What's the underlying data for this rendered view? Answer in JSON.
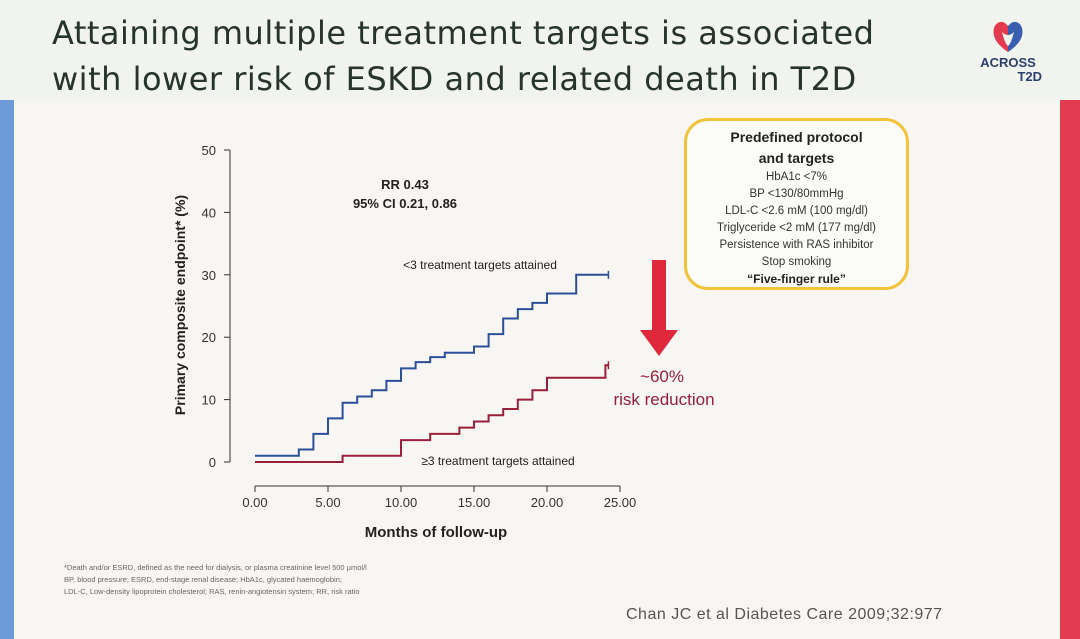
{
  "header": {
    "title_line1": "Attaining multiple treatment targets is associated",
    "title_line2": "with lower risk of ESKD and related death in T2D",
    "logo_line1": "ACROSS",
    "logo_line2": "T2D",
    "logo_icon": "across-t2d-logo-icon",
    "colors": {
      "logo_red": "#e23a4e",
      "logo_blue": "#3b5fb0"
    }
  },
  "chart_data": {
    "type": "line",
    "xlabel": "Months of follow-up",
    "ylabel": "Primary composite endpoint* (%)",
    "xlim": [
      0,
      25
    ],
    "ylim": [
      0,
      50
    ],
    "x_ticks": [
      "0.00",
      "5.00",
      "10.00",
      "15.00",
      "20.00",
      "25.00"
    ],
    "y_ticks": [
      "0",
      "10",
      "20",
      "30",
      "40",
      "50"
    ],
    "grid": false,
    "annotations": {
      "rr": "RR 0.43",
      "ci": "95% CI 0.21, 0.86",
      "reduction_pct": "~60%",
      "reduction_label": "risk reduction"
    },
    "series": [
      {
        "name": "<3 treatment targets attained",
        "color": "#2c4f9a",
        "step_x": [
          0,
          3,
          4,
          5,
          6,
          7,
          8,
          9,
          10,
          11,
          12,
          13,
          15,
          16,
          17,
          18,
          19,
          20,
          22,
          24
        ],
        "step_y": [
          1,
          2,
          4.5,
          7,
          9.5,
          10.5,
          11.5,
          13,
          15,
          16,
          16.8,
          17.5,
          18.5,
          20.5,
          23,
          24.5,
          25.5,
          27,
          30,
          30
        ]
      },
      {
        "name": "≥3 treatment targets attained",
        "color": "#9a1f3a",
        "step_x": [
          0,
          6,
          10,
          12,
          14,
          15,
          16,
          17,
          18,
          19,
          20,
          24
        ],
        "step_y": [
          0,
          1,
          3.5,
          4.5,
          5.5,
          6.5,
          7.5,
          8.5,
          10,
          11.5,
          13.5,
          15.5
        ]
      }
    ]
  },
  "protocol": {
    "heading1": "Predefined protocol",
    "heading2": "and targets",
    "items": [
      "HbA1c <7%",
      "BP <130/80mmHg",
      "LDL-C <2.6 mM (100 mg/dl)",
      "Triglyceride <2 mM (177 mg/dl)",
      "Persistence with RAS inhibitor",
      "Stop smoking"
    ],
    "rule": "“Five-finger rule”"
  },
  "arrow": {
    "color": "#e0283c",
    "icon": "down-arrow-icon"
  },
  "footnote": {
    "line1": "*Death and/or ESRD, defined as the need for dialysis, or plasma creatinine level 500 µmol/l",
    "line2": "BP, blood pressure; ESRD, end-stage renal disease; HbA1c, glycated haemoglobin;",
    "line3": "LDL-C, Low-density lipoprotein cholesterol; RAS, renin-angiotensin system; RR, risk ratio"
  },
  "citation": "Chan JC et al Diabetes Care 2009;32:977"
}
